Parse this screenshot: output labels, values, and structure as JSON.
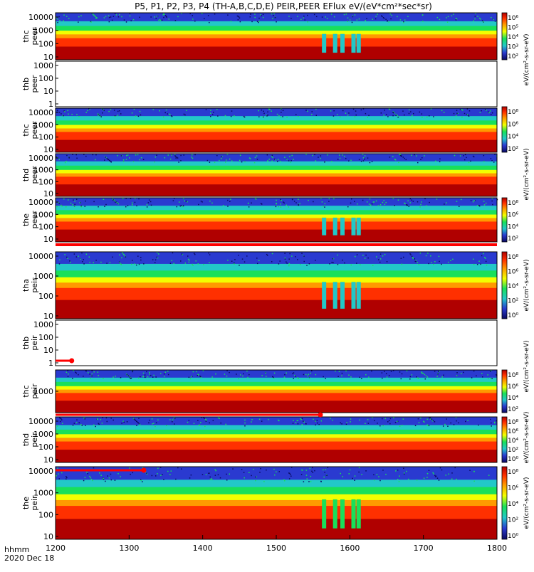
{
  "title": "P5, P1, P2, P3, P4 (TH-A,B,C,D,E) PEIR,PEER EFlux eV/(eV*cm²*sec*sr)",
  "time_axis": {
    "ticks": [
      "1200",
      "1300",
      "1400",
      "1500",
      "1600",
      "1700",
      "1800"
    ],
    "hhmm_label": "hhmm",
    "date_label": "2020 Dec 18"
  },
  "colorbar_labels": [
    "eV/(cm²-s-sr-eV)",
    "eV/(cm²-s-sr-eV)",
    "eV/(cm²-s-sr-eV)",
    "eV/(cm²-s-sr-eV)",
    "eV/(cm²-s-sr-eV)",
    "eV/(cm²-s-sr-eV)"
  ],
  "colors": {
    "high": "#b00000",
    "mid": "#ff3000",
    "orange": "#ff9a00",
    "yellow": "#f2ff00",
    "green": "#18e05a",
    "cyan": "#22c8c8",
    "blue": "#2a3ad0",
    "dark": "#0a0a60",
    "bar": "#ff0000"
  },
  "chart_data": {
    "type": "heatmap",
    "x_range": [
      1200,
      1800
    ],
    "panels": [
      {
        "line1": "thc",
        "line2": "peer",
        "ticks": [
          "10000",
          "1000",
          "100",
          "10"
        ],
        "filled": true,
        "cb_ticks": [
          "10⁶",
          "10⁵",
          "10⁴",
          "10³",
          "10²"
        ]
      },
      {
        "line1": "thb",
        "line2": "peer",
        "ticks": [
          "1000",
          "100",
          "10",
          "1"
        ],
        "filled": false
      },
      {
        "line1": "thc",
        "line2": "peer",
        "ticks": [
          "10000",
          "1000",
          "100",
          "10"
        ],
        "filled": true,
        "cb_ticks": [
          "10⁸",
          "10⁶",
          "10⁴",
          "10²"
        ]
      },
      {
        "line1": "thd",
        "line2": "peer",
        "ticks": [
          "10000",
          "1000",
          "100",
          "10"
        ],
        "filled": true
      },
      {
        "line1": "the",
        "line2": "peer",
        "ticks": [
          "10000",
          "1000",
          "100",
          "10"
        ],
        "filled": true,
        "cb_ticks": [
          "10⁸",
          "10⁶",
          "10⁴",
          "10²"
        ]
      },
      {
        "line1": "tha",
        "line2": "peir",
        "ticks": [
          "10000",
          "1000",
          "100",
          "10"
        ],
        "filled": true,
        "cb_ticks": [
          "10⁸",
          "10⁶",
          "10⁴",
          "10²",
          "10⁰"
        ]
      },
      {
        "line1": "thb",
        "line2": "peir",
        "ticks": [
          "1000",
          "100",
          "10",
          "1"
        ],
        "filled": false
      },
      {
        "line1": "thc",
        "line2": "peir",
        "ticks": [
          "1000"
        ],
        "filled": true,
        "cb_ticks": [
          "10⁸",
          "10⁶",
          "10⁴",
          "10²"
        ]
      },
      {
        "line1": "thd",
        "line2": "peir",
        "ticks": [
          "10000",
          "1000",
          "100",
          "10"
        ],
        "filled": true,
        "cb_ticks": [
          "10⁸",
          "10⁶",
          "10⁴",
          "10²",
          "10⁰"
        ]
      },
      {
        "line1": "the",
        "line2": "peir",
        "ticks": [
          "10000",
          "1000",
          "100",
          "10"
        ],
        "filled": true,
        "cb_ticks": [
          "10⁸",
          "10⁶",
          "10⁴",
          "10²",
          "10⁰"
        ]
      }
    ],
    "data_gaps": [
      1565,
      1580,
      1590,
      1605,
      1612
    ],
    "coverage_bars": [
      {
        "end_time": 1222
      },
      {
        "end_time": 1560
      },
      {
        "end_time": 1320
      }
    ]
  }
}
